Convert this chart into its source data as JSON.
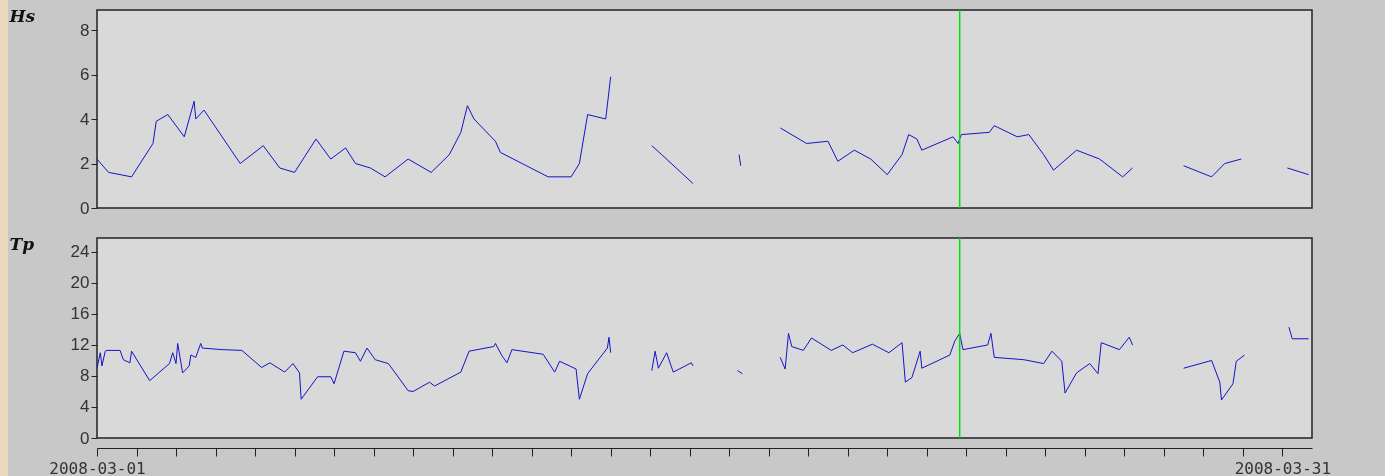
{
  "chart_data": [
    {
      "type": "line",
      "ylabel": "Hs",
      "xlim": [
        "2008-03-01",
        "2008-03-31T18:00"
      ],
      "ylim": [
        0,
        8.9
      ],
      "yticks": [
        0,
        2,
        4,
        6,
        8
      ],
      "tick_labels": "y",
      "grid": false,
      "ref_lines": [
        {
          "axis": "x",
          "value": "2008-03-22T20:00",
          "color": "#00e000"
        }
      ],
      "series": [
        {
          "color": "#1414c8",
          "x": [
            "2008-03-01T00:00",
            "2008-03-01T07:00",
            "2008-03-01T21:00",
            "2008-03-02T10:00",
            "2008-03-02T12:00",
            "2008-03-02T19:00",
            "2008-03-03T05:00",
            "2008-03-03T11:00",
            "2008-03-03T12:00",
            "2008-03-03T17:00",
            "2008-03-04T15:00",
            "2008-03-05T05:00",
            "2008-03-05T15:00",
            "2008-03-06T00:00",
            "2008-03-06T13:00",
            "2008-03-06T22:00",
            "2008-03-07T07:00",
            "2008-03-07T13:00",
            "2008-03-07T22:00",
            "2008-03-08T07:00",
            "2008-03-08T21:00",
            "2008-03-09T11:00",
            "2008-03-09T22:00",
            "2008-03-10T05:00",
            "2008-03-10T09:00",
            "2008-03-10T13:00",
            "2008-03-11T02:00",
            "2008-03-11T05:00",
            "2008-03-12T10:00",
            "2008-03-13T00:00",
            "2008-03-13T05:00",
            "2008-03-13T10:00",
            "2008-03-13T21:00",
            "2008-03-14T00:00",
            "2008-03-14T06:00",
            "2008-03-15T01:00",
            "2008-03-15T07:00",
            "2008-03-16T02:00",
            "2008-03-16T12:00",
            "2008-03-17T06:00",
            "2008-03-17T07:00",
            "2008-03-17T18:00",
            "2008-03-18T07:00",
            "2008-03-18T23:00",
            "2008-03-19T12:00",
            "2008-03-19T18:00",
            "2008-03-20T04:00",
            "2008-03-20T14:00",
            "2008-03-21T00:00",
            "2008-03-21T09:00",
            "2008-03-21T13:00",
            "2008-03-21T18:00",
            "2008-03-21T21:00",
            "2008-03-22T16:00",
            "2008-03-22T19:00",
            "2008-03-22T21:00",
            "2008-03-23T14:00",
            "2008-03-23T17:00",
            "2008-03-24T07:00",
            "2008-03-24T14:00",
            "2008-03-24T23:00",
            "2008-03-25T05:00",
            "2008-03-25T19:00",
            "2008-03-26T09:00",
            "2008-03-26T23:00",
            "2008-03-27T05:00",
            "2008-03-27T20:00",
            "2008-03-28T12:00",
            "2008-03-29T05:00",
            "2008-03-29T13:00",
            "2008-03-29T23:00",
            "2008-03-30T12:00",
            "2008-03-31T03:00",
            "2008-03-31T16:00"
          ],
          "values": [
            2.2,
            1.6,
            1.4,
            2.9,
            3.9,
            4.2,
            3.2,
            4.8,
            4.0,
            4.4,
            2.0,
            2.8,
            1.8,
            1.6,
            3.1,
            2.2,
            2.7,
            2.0,
            1.8,
            1.4,
            2.2,
            1.6,
            2.4,
            3.4,
            4.6,
            4.0,
            3.0,
            2.5,
            1.4,
            1.4,
            2.0,
            4.2,
            4.0,
            5.9,
            null,
            2.8,
            2.4,
            1.1,
            null,
            2.4,
            1.9,
            null,
            3.6,
            2.9,
            3.0,
            2.1,
            2.6,
            2.2,
            1.5,
            2.4,
            3.3,
            3.1,
            2.6,
            3.2,
            2.9,
            3.3,
            3.4,
            3.7,
            3.2,
            3.3,
            2.4,
            1.7,
            2.6,
            2.2,
            1.4,
            1.8,
            null,
            1.9,
            1.4,
            2.0,
            2.2,
            null,
            1.8,
            1.5
          ]
        }
      ]
    },
    {
      "type": "line",
      "ylabel": "Tp",
      "xlim": [
        "2008-03-01",
        "2008-03-31T18:00"
      ],
      "ylim": [
        0,
        25.8
      ],
      "yticks": [
        0,
        4,
        8,
        12,
        16,
        20,
        24
      ],
      "grid": false,
      "xticks": [
        {
          "value": "2008-03-01",
          "label": "2008-03-01"
        },
        {
          "value": "2008-03-02",
          "label": null
        },
        {
          "value": "2008-03-03",
          "label": null
        },
        {
          "value": "2008-03-04",
          "label": null
        },
        {
          "value": "2008-03-05",
          "label": null
        },
        {
          "value": "2008-03-06",
          "label": null
        },
        {
          "value": "2008-03-07",
          "label": null
        },
        {
          "value": "2008-03-08",
          "label": null
        },
        {
          "value": "2008-03-09",
          "label": null
        },
        {
          "value": "2008-03-10",
          "label": null
        },
        {
          "value": "2008-03-11",
          "label": null
        },
        {
          "value": "2008-03-12",
          "label": null
        },
        {
          "value": "2008-03-13",
          "label": null
        },
        {
          "value": "2008-03-14",
          "label": null
        },
        {
          "value": "2008-03-15",
          "label": null
        },
        {
          "value": "2008-03-16",
          "label": null
        },
        {
          "value": "2008-03-17",
          "label": null
        },
        {
          "value": "2008-03-18",
          "label": null
        },
        {
          "value": "2008-03-19",
          "label": null
        },
        {
          "value": "2008-03-20",
          "label": null
        },
        {
          "value": "2008-03-21",
          "label": null
        },
        {
          "value": "2008-03-22",
          "label": null
        },
        {
          "value": "2008-03-23",
          "label": null
        },
        {
          "value": "2008-03-24",
          "label": null
        },
        {
          "value": "2008-03-25",
          "label": null
        },
        {
          "value": "2008-03-26",
          "label": null
        },
        {
          "value": "2008-03-27",
          "label": null
        },
        {
          "value": "2008-03-28",
          "label": null
        },
        {
          "value": "2008-03-29",
          "label": null
        },
        {
          "value": "2008-03-30",
          "label": null
        },
        {
          "value": "2008-03-31",
          "label": "2008-03-31"
        }
      ],
      "ref_lines": [
        {
          "axis": "x",
          "value": "2008-03-22T20:00",
          "color": "#00e000"
        }
      ],
      "series": [
        {
          "color": "#1414c8",
          "x": [
            "2008-03-01T00:00",
            "2008-03-01T02:00",
            "2008-03-01T03:00",
            "2008-03-01T05:00",
            "2008-03-01T06:00",
            "2008-03-01T14:00",
            "2008-03-01T16:00",
            "2008-03-01T20:00",
            "2008-03-01T21:00",
            "2008-03-02T08:00",
            "2008-03-02T20:00",
            "2008-03-02T22:00",
            "2008-03-03T00:00",
            "2008-03-03T01:00",
            "2008-03-03T04:00",
            "2008-03-03T08:00",
            "2008-03-03T09:00",
            "2008-03-03T12:00",
            "2008-03-03T15:00",
            "2008-03-03T16:00",
            "2008-03-04T04:00",
            "2008-03-04T16:00",
            "2008-03-05T04:00",
            "2008-03-05T09:00",
            "2008-03-05T18:00",
            "2008-03-05T23:00",
            "2008-03-06T03:00",
            "2008-03-06T04:00",
            "2008-03-06T14:00",
            "2008-03-06T22:00",
            "2008-03-07T00:00",
            "2008-03-07T06:00",
            "2008-03-07T13:00",
            "2008-03-07T16:00",
            "2008-03-07T20:00",
            "2008-03-08T01:00",
            "2008-03-08T09:00",
            "2008-03-08T21:00",
            "2008-03-09T00:00",
            "2008-03-09T10:00",
            "2008-03-09T13:00",
            "2008-03-10T05:00",
            "2008-03-10T10:00",
            "2008-03-11T01:00",
            "2008-03-11T02:00",
            "2008-03-11T06:00",
            "2008-03-11T09:00",
            "2008-03-11T12:00",
            "2008-03-12T07:00",
            "2008-03-12T14:00",
            "2008-03-12T17:00",
            "2008-03-13T03:00",
            "2008-03-13T05:00",
            "2008-03-13T10:00",
            "2008-03-13T22:00",
            "2008-03-13T23:00",
            "2008-03-14T00:00",
            "2008-03-14T06:00",
            "2008-03-15T01:00",
            "2008-03-15T03:00",
            "2008-03-15T05:00",
            "2008-03-15T10:00",
            "2008-03-15T14:00",
            "2008-03-16T01:00",
            "2008-03-16T02:00",
            "2008-03-16T12:00",
            "2008-03-17T05:00",
            "2008-03-17T08:00",
            "2008-03-17T18:00",
            "2008-03-18T07:00",
            "2008-03-18T10:00",
            "2008-03-18T12:00",
            "2008-03-18T14:00",
            "2008-03-18T21:00",
            "2008-03-19T02:00",
            "2008-03-19T14:00",
            "2008-03-19T21:00",
            "2008-03-20T03:00",
            "2008-03-20T15:00",
            "2008-03-21T01:00",
            "2008-03-21T09:00",
            "2008-03-21T11:00",
            "2008-03-21T15:00",
            "2008-03-21T20:00",
            "2008-03-21T21:00",
            "2008-03-22T14:00",
            "2008-03-22T17:00",
            "2008-03-22T20:00",
            "2008-03-22T22:00",
            "2008-03-23T13:00",
            "2008-03-23T15:00",
            "2008-03-23T17:00",
            "2008-03-24T11:00",
            "2008-03-24T23:00",
            "2008-03-25T04:00",
            "2008-03-25T10:00",
            "2008-03-25T12:00",
            "2008-03-25T19:00",
            "2008-03-26T03:00",
            "2008-03-26T08:00",
            "2008-03-26T10:00",
            "2008-03-26T21:00",
            "2008-03-27T03:00",
            "2008-03-27T05:00",
            "2008-03-27T20:00",
            "2008-03-28T12:00",
            "2008-03-29T05:00",
            "2008-03-29T10:00",
            "2008-03-29T11:00",
            "2008-03-29T18:00",
            "2008-03-29T20:00",
            "2008-03-30T01:00",
            "2008-03-30T12:00",
            "2008-03-31T04:00",
            "2008-03-31T06:00",
            "2008-03-31T16:00"
          ],
          "values": [
            9.0,
            11.0,
            9.3,
            11.2,
            11.3,
            11.3,
            10.1,
            9.7,
            11.2,
            7.4,
            9.6,
            11.0,
            9.6,
            12.2,
            8.4,
            9.3,
            10.7,
            10.4,
            12.2,
            11.6,
            11.4,
            11.3,
            9.1,
            9.7,
            8.5,
            9.6,
            8.4,
            5.0,
            7.9,
            7.9,
            7.0,
            11.2,
            11.0,
            9.9,
            11.6,
            10.1,
            9.6,
            6.1,
            6.0,
            7.2,
            6.7,
            8.5,
            11.2,
            11.8,
            12.2,
            10.6,
            9.7,
            11.4,
            10.8,
            8.5,
            9.9,
            8.9,
            5.0,
            8.3,
            11.6,
            13.0,
            11.0,
            null,
            8.7,
            11.2,
            9.0,
            11.0,
            8.5,
            9.7,
            9.3,
            null,
            8.7,
            8.3,
            null,
            10.4,
            8.9,
            13.5,
            11.8,
            11.3,
            12.9,
            11.3,
            12.0,
            11.0,
            12.1,
            11.0,
            12.3,
            7.2,
            7.8,
            11.2,
            9.0,
            10.7,
            12.5,
            13.5,
            11.4,
            12.0,
            13.5,
            10.4,
            10.1,
            9.6,
            11.2,
            9.9,
            5.8,
            8.4,
            9.6,
            8.3,
            12.3,
            11.4,
            13.0,
            12.0,
            null,
            9.0,
            10.0,
            7.2,
            4.9,
            7.0,
            9.9,
            10.7,
            null,
            14.3,
            12.8,
            12.8
          ]
        }
      ]
    }
  ]
}
